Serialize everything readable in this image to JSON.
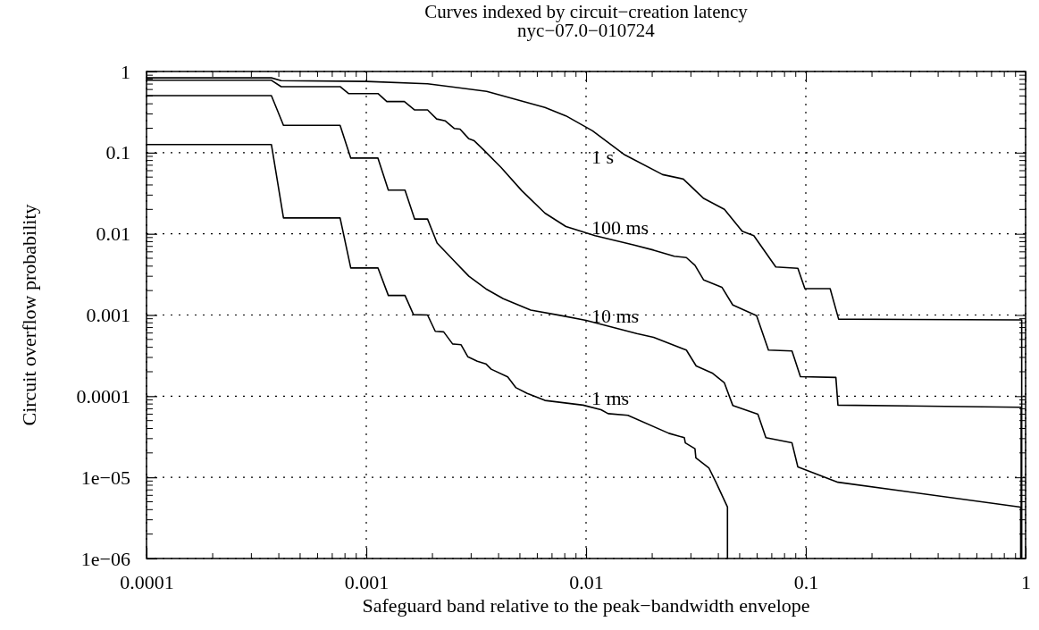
{
  "chart_data": {
    "type": "line",
    "title": "Curves indexed by circuit−creation latency",
    "subtitle": "nyc−07.0−010724",
    "xlabel": "Safeguard band relative to the peak−bandwidth envelope",
    "ylabel": "Circuit overflow probability",
    "log": "xy",
    "grid": true,
    "marker": "none",
    "line_style": "solid",
    "xlim": [
      0.0001,
      1
    ],
    "ylim": [
      1e-06,
      1
    ],
    "xticks": [
      0.0001,
      0.001,
      0.01,
      0.1,
      1
    ],
    "yticks": [
      1,
      0.1,
      0.01,
      0.001,
      0.0001,
      {
        "value": 1e-05,
        "label": "1e−05"
      },
      {
        "value": 1e-06,
        "label": "1e−06"
      }
    ],
    "series": [
      {
        "name": "1 s",
        "color": "#000000",
        "x": [
          0.0001,
          0.00037,
          0.00041,
          0.001,
          0.0019,
          0.00353,
          0.0065,
          0.0081,
          0.0107,
          0.015,
          0.0223,
          0.0277,
          0.0343,
          0.0426,
          0.0513,
          0.058,
          0.073,
          0.092,
          0.099,
          0.129,
          0.141,
          0.96,
          0.96
        ],
        "values": [
          0.835,
          0.835,
          0.77,
          0.755,
          0.707,
          0.57,
          0.36,
          0.284,
          0.186,
          0.094,
          0.0537,
          0.0473,
          0.0273,
          0.02,
          0.0108,
          0.0095,
          0.0039,
          0.00376,
          0.00211,
          0.00211,
          0.00089,
          0.00087,
          1e-06
        ]
      },
      {
        "name": "100 ms",
        "color": "#000000",
        "x": [
          0.0001,
          0.00037,
          0.00041,
          0.00076,
          0.00083,
          0.00113,
          0.00124,
          0.00149,
          0.00166,
          0.0019,
          0.00209,
          0.00229,
          0.00251,
          0.00267,
          0.00293,
          0.0031,
          0.0034,
          0.0041,
          0.0051,
          0.0065,
          0.0081,
          0.011,
          0.0164,
          0.0203,
          0.0252,
          0.0286,
          0.0313,
          0.0343,
          0.0415,
          0.0465,
          0.0597,
          0.0676,
          0.0865,
          0.0945,
          0.137,
          0.14,
          0.955,
          0.955
        ],
        "values": [
          0.78,
          0.78,
          0.65,
          0.65,
          0.535,
          0.535,
          0.426,
          0.426,
          0.336,
          0.336,
          0.26,
          0.246,
          0.199,
          0.195,
          0.148,
          0.14,
          0.11,
          0.066,
          0.034,
          0.018,
          0.0123,
          0.0095,
          0.0073,
          0.0063,
          0.0053,
          0.0051,
          0.0041,
          0.0027,
          0.0022,
          0.00133,
          0.00098,
          0.00037,
          0.00036,
          0.000174,
          0.00017,
          7.75e-05,
          7.3e-05,
          1e-06
        ]
      },
      {
        "name": "10 ms",
        "color": "#000000",
        "x": [
          0.0001,
          0.00037,
          0.00042,
          0.00076,
          0.00085,
          0.00113,
          0.00126,
          0.0015,
          0.00166,
          0.0019,
          0.0021,
          0.0025,
          0.00293,
          0.0035,
          0.0042,
          0.0056,
          0.0076,
          0.01,
          0.017,
          0.0203,
          0.0286,
          0.0317,
          0.0375,
          0.0426,
          0.0465,
          0.0605,
          0.0658,
          0.0865,
          0.092,
          0.14,
          0.95,
          0.95
        ],
        "values": [
          0.504,
          0.504,
          0.217,
          0.217,
          0.0857,
          0.0857,
          0.0345,
          0.0345,
          0.0152,
          0.0152,
          0.0077,
          0.0047,
          0.003,
          0.0021,
          0.00159,
          0.00115,
          0.00099,
          0.00086,
          0.00059,
          0.00053,
          0.00037,
          0.000236,
          0.000193,
          0.000146,
          7.7e-05,
          6e-05,
          3.08e-05,
          2.66e-05,
          1.34e-05,
          8.7e-06,
          4.3e-06,
          1e-06
        ]
      },
      {
        "name": "1 ms",
        "color": "#000000",
        "x": [
          0.0001,
          0.00037,
          0.00042,
          0.00076,
          0.00085,
          0.00113,
          0.00126,
          0.0015,
          0.00164,
          0.0019,
          0.00206,
          0.00225,
          0.00247,
          0.0027,
          0.0029,
          0.0032,
          0.0035,
          0.0037,
          0.0044,
          0.0048,
          0.0054,
          0.0065,
          0.0097,
          0.0117,
          0.0126,
          0.0155,
          0.0238,
          0.028,
          0.0283,
          0.0313,
          0.0316,
          0.0362,
          0.039,
          0.044,
          0.044
        ],
        "values": [
          0.126,
          0.126,
          0.0157,
          0.0157,
          0.0038,
          0.0038,
          0.00174,
          0.00174,
          0.00101,
          0.001,
          0.00063,
          0.00062,
          0.00044,
          0.00043,
          0.000305,
          0.00027,
          0.00025,
          0.000215,
          0.000173,
          0.000127,
          0.000108,
          8.86e-05,
          7.75e-05,
          6.8e-05,
          6.1e-05,
          5.8e-05,
          3.49e-05,
          3.08e-05,
          2.66e-05,
          2.25e-05,
          1.74e-05,
          1.31e-05,
          8.7e-06,
          4.3e-06,
          1e-06
        ]
      }
    ]
  }
}
